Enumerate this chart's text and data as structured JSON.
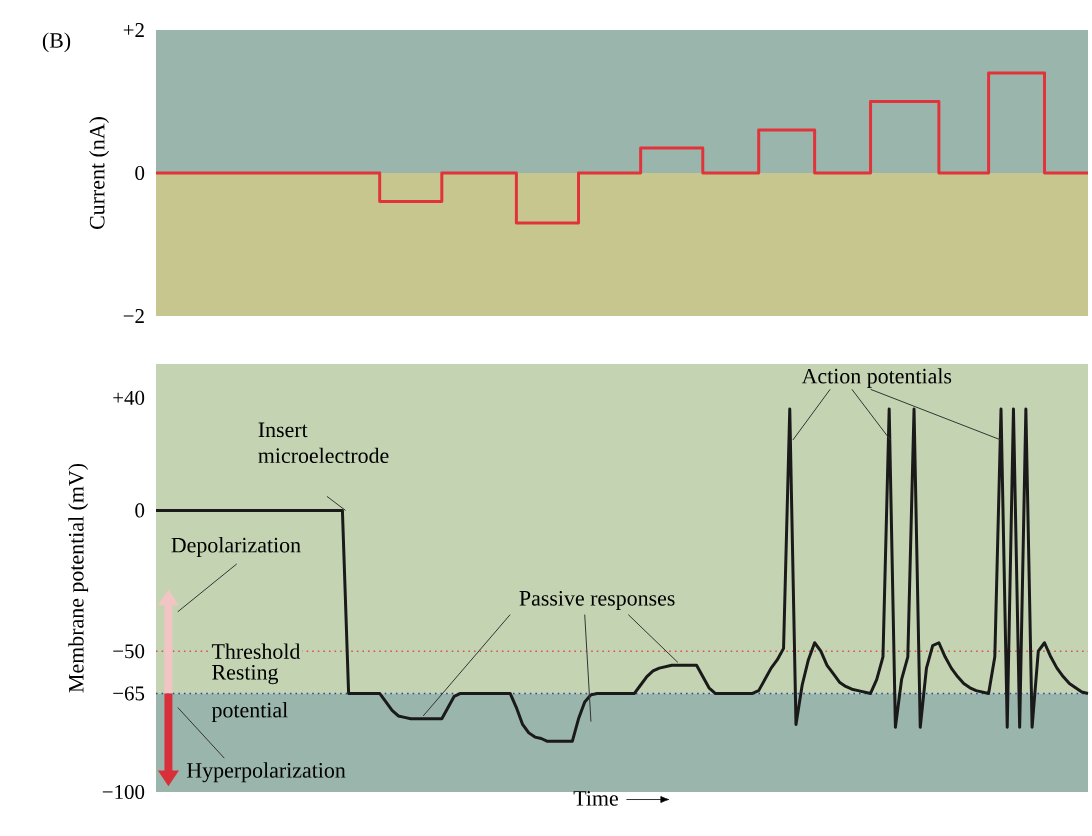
{
  "chart_data": [
    {
      "type": "step",
      "ylabel": "Current (nA)",
      "ylim": [
        -2,
        2
      ],
      "yticks": [
        {
          "value": 2,
          "label": "+2"
        },
        {
          "value": 0,
          "label": "0"
        },
        {
          "value": -2,
          "label": "−2"
        }
      ],
      "tick_labels": "y",
      "categories": [
        null,
        null,
        null,
        null,
        null,
        null,
        null,
        null,
        null,
        null,
        null,
        null,
        null,
        null,
        null,
        null,
        null,
        null,
        null,
        null,
        null,
        null,
        null,
        null,
        null,
        null,
        null,
        null,
        null,
        null,
        null,
        null,
        null,
        null,
        null,
        null,
        null,
        null,
        null,
        null,
        null,
        null,
        null,
        null,
        null,
        null,
        null,
        null,
        null,
        null,
        null,
        null,
        null,
        null,
        null,
        null,
        null,
        null,
        null,
        null,
        null,
        null,
        null,
        null,
        null,
        null,
        null,
        null,
        null,
        null,
        null,
        null,
        null,
        null,
        null,
        null,
        null,
        null,
        null,
        null,
        null,
        null,
        null,
        null,
        null,
        null,
        null,
        null,
        null,
        null,
        null,
        null,
        null,
        null,
        null,
        null,
        null,
        null,
        null,
        null,
        null,
        null,
        null,
        null,
        null,
        null,
        null,
        null,
        null,
        null,
        null,
        null,
        null,
        null,
        null,
        null,
        null,
        null,
        null,
        null,
        null,
        null,
        null,
        null,
        null,
        null,
        null,
        null,
        null,
        null,
        null,
        null,
        null,
        null,
        null,
        null,
        null,
        null,
        null,
        null,
        null,
        null,
        null,
        null,
        null,
        null,
        null,
        null,
        null,
        null,
        null
      ],
      "series": [
        {
          "color": "#e0343a",
          "values": [
            0,
            0,
            0,
            0,
            0,
            0,
            0,
            0,
            0,
            0,
            0,
            0,
            0,
            0,
            0,
            0,
            0,
            0,
            0,
            0,
            0,
            0,
            0,
            0,
            0,
            0,
            0,
            0,
            0,
            0,
            0,
            0,
            0,
            0,
            0,
            0,
            -0.4,
            -0.4,
            -0.4,
            -0.4,
            -0.4,
            -0.4,
            -0.4,
            -0.4,
            -0.4,
            -0.4,
            0,
            0,
            0,
            0,
            0,
            0,
            0,
            0,
            0,
            0,
            0,
            0,
            -0.7,
            -0.7,
            -0.7,
            -0.7,
            -0.7,
            -0.7,
            -0.7,
            -0.7,
            -0.7,
            -0.7,
            0,
            0,
            0,
            0,
            0,
            0,
            0,
            0,
            0,
            0,
            0.35,
            0.35,
            0.35,
            0.35,
            0.35,
            0.35,
            0.35,
            0.35,
            0.35,
            0.35,
            0,
            0,
            0,
            0,
            0,
            0,
            0,
            0,
            0,
            0.6,
            0.6,
            0.6,
            0.6,
            0.6,
            0.6,
            0.6,
            0.6,
            0.6,
            0,
            0,
            0,
            0,
            0,
            0,
            0,
            0,
            0,
            1.0,
            1.0,
            1.0,
            1.0,
            1.0,
            1.0,
            1.0,
            1.0,
            1.0,
            1.0,
            1.0,
            0,
            0,
            0,
            0,
            0,
            0,
            0,
            0,
            1.4,
            1.4,
            1.4,
            1.4,
            1.4,
            1.4,
            1.4,
            1.4,
            1.4,
            0,
            0,
            0,
            0,
            0,
            0,
            0,
            0
          ]
        }
      ],
      "bands": [
        {
          "axis": "y",
          "from": 0,
          "to": 2,
          "color": "#9ab5ab"
        },
        {
          "axis": "y",
          "from": -2,
          "to": 0,
          "color": "#c7c68f"
        }
      ],
      "annotations": [
        "(B)"
      ]
    },
    {
      "type": "line",
      "ylabel": "Membrane potential (mV)",
      "xlabel": "Time",
      "ylim": [
        -100,
        52
      ],
      "yticks": [
        {
          "value": 40,
          "label": "+40"
        },
        {
          "value": 0,
          "label": "0"
        },
        {
          "value": -50,
          "label": "−50"
        },
        {
          "value": -65,
          "label": "−65"
        },
        {
          "value": -100,
          "label": "−100"
        }
      ],
      "tick_labels": "y",
      "categories": [
        null,
        null,
        null,
        null,
        null,
        null,
        null,
        null,
        null,
        null,
        null,
        null,
        null,
        null,
        null,
        null,
        null,
        null,
        null,
        null,
        null,
        null,
        null,
        null,
        null,
        null,
        null,
        null,
        null,
        null,
        null,
        null,
        null,
        null,
        null,
        null,
        null,
        null,
        null,
        null,
        null,
        null,
        null,
        null,
        null,
        null,
        null,
        null,
        null,
        null,
        null,
        null,
        null,
        null,
        null,
        null,
        null,
        null,
        null,
        null,
        null,
        null,
        null,
        null,
        null,
        null,
        null,
        null,
        null,
        null,
        null,
        null,
        null,
        null,
        null,
        null,
        null,
        null,
        null,
        null,
        null,
        null,
        null,
        null,
        null,
        null,
        null,
        null,
        null,
        null,
        null,
        null,
        null,
        null,
        null,
        null,
        null,
        null,
        null,
        null,
        null,
        null,
        null,
        null,
        null,
        null,
        null,
        null,
        null,
        null,
        null,
        null,
        null,
        null,
        null,
        null,
        null,
        null,
        null,
        null,
        null,
        null,
        null,
        null,
        null,
        null,
        null,
        null,
        null,
        null,
        null,
        null,
        null,
        null,
        null,
        null,
        null,
        null,
        null,
        null,
        null,
        null,
        null,
        null,
        null,
        null,
        null,
        null,
        null,
        null,
        null
      ],
      "series": [
        {
          "color": "#1a1a1a",
          "values": [
            0,
            0,
            0,
            0,
            0,
            0,
            0,
            0,
            0,
            0,
            0,
            0,
            0,
            0,
            0,
            0,
            0,
            0,
            0,
            0,
            0,
            0,
            0,
            0,
            0,
            0,
            0,
            0,
            0,
            0,
            0,
            -65,
            -65,
            -65,
            -65,
            -65,
            -65,
            -68,
            -71,
            -73,
            -73.5,
            -74,
            -74,
            -74,
            -74,
            -74,
            -74,
            -70,
            -66,
            -65,
            -65,
            -65,
            -65,
            -65,
            -65,
            -65,
            -65,
            -65,
            -70,
            -76,
            -79,
            -80.5,
            -81,
            -82,
            -82,
            -82,
            -82,
            -82,
            -74,
            -68,
            -65.5,
            -65,
            -65,
            -65,
            -65,
            -65,
            -65,
            -65,
            -62,
            -59,
            -57,
            -56,
            -55.5,
            -55,
            -55,
            -55,
            -55,
            -55,
            -59,
            -63,
            -65,
            -65,
            -65,
            -65,
            -65,
            -65,
            -65,
            -64,
            -60,
            -56,
            -53,
            -49,
            36,
            -76,
            -62,
            -53,
            -47,
            -50,
            -55,
            -58,
            -61,
            -62.5,
            -63.5,
            -64,
            -64.5,
            -65,
            -60,
            -52,
            36,
            -77,
            -60,
            -52,
            36,
            -77,
            -56,
            -48,
            -47,
            -52,
            -56,
            -59,
            -61.5,
            -63,
            -64,
            -64.5,
            -65,
            -52,
            36,
            -77,
            36,
            -77,
            36,
            -77,
            -50,
            -47,
            -52,
            -56,
            -59,
            -61.5,
            -63,
            -64.5,
            -65
          ]
        }
      ],
      "bands": [
        {
          "axis": "y",
          "from": -65,
          "to": 52,
          "color": "#c4d4b2"
        },
        {
          "axis": "y",
          "from": -100,
          "to": -65,
          "color": "#9ab5ab"
        }
      ],
      "ref_lines": [
        {
          "axis": "y",
          "value": -50,
          "label": "Threshold",
          "color": "#d9534f",
          "line_style": "dotted"
        },
        {
          "axis": "y",
          "value": -65,
          "label": "Resting potential",
          "color": "#2a4a8a",
          "line_style": "dotted"
        }
      ],
      "annotations": [
        "Insert microelectrode",
        "Depolarization",
        "Hyperpolarization",
        "Passive responses",
        "Action potentials"
      ]
    }
  ]
}
